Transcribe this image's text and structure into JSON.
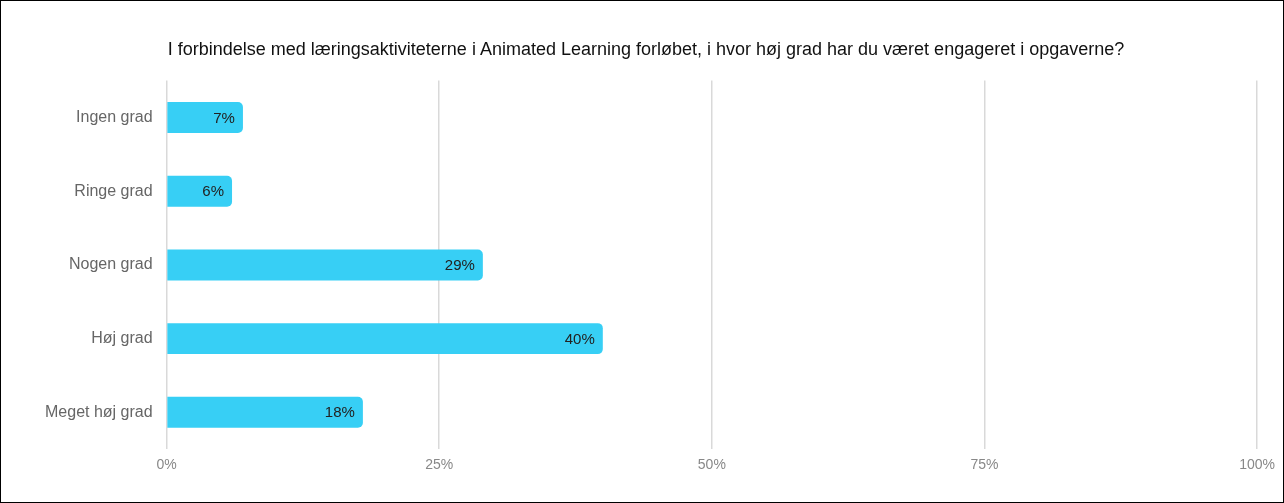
{
  "chart_data": {
    "type": "bar",
    "orientation": "horizontal",
    "title": "I forbindelse med læringsaktiviteterne i Animated Learning forløbet, i hvor høj grad har du været engageret i opgaverne?",
    "categories": [
      "Ingen grad",
      "Ringe grad",
      "Nogen grad",
      "Høj grad",
      "Meget høj grad"
    ],
    "values": [
      7,
      6,
      29,
      40,
      18
    ],
    "value_labels": [
      "7%",
      "6%",
      "29%",
      "40%",
      "18%"
    ],
    "color": "#37cff5",
    "xlim": [
      0,
      100
    ],
    "xticks": [
      {
        "value": 0,
        "label": "0%"
      },
      {
        "value": 25,
        "label": "25%"
      },
      {
        "value": 50,
        "label": "50%"
      },
      {
        "value": 75,
        "label": "75%"
      },
      {
        "value": 100,
        "label": "100%"
      }
    ],
    "grid": "x",
    "legend": false
  }
}
